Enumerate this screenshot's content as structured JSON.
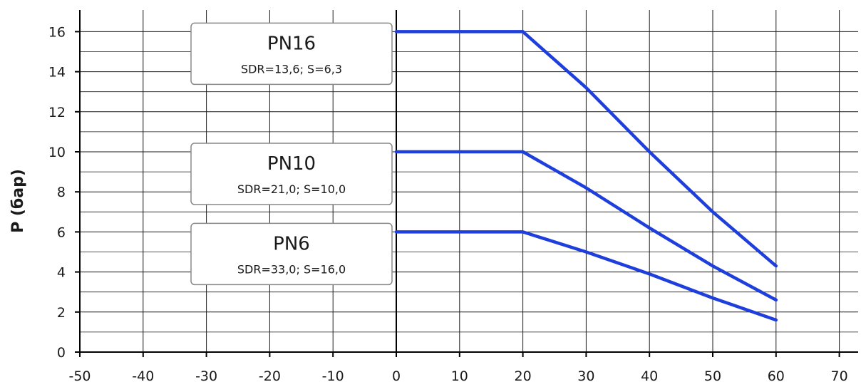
{
  "chart_data": {
    "type": "line",
    "title": "",
    "xlabel": "",
    "ylabel": "P (бар)",
    "xlim": [
      -50,
      75
    ],
    "ylim": [
      0,
      17
    ],
    "x_ticks": [
      -50,
      -40,
      -30,
      -20,
      -10,
      0,
      10,
      20,
      30,
      40,
      50,
      60,
      70
    ],
    "y_ticks": [
      0,
      2,
      4,
      6,
      8,
      10,
      12,
      14,
      16
    ],
    "grid": true,
    "line_color": "#1f3fdc",
    "series": [
      {
        "name": "PN16",
        "subtitle": "SDR=13,6; S=6,3",
        "points": [
          [
            0,
            16
          ],
          [
            20,
            16
          ],
          [
            30,
            13.2
          ],
          [
            40,
            10
          ],
          [
            50,
            7
          ],
          [
            60,
            4.3
          ]
        ]
      },
      {
        "name": "PN10",
        "subtitle": "SDR=21,0; S=10,0",
        "points": [
          [
            0,
            10
          ],
          [
            20,
            10
          ],
          [
            30,
            8.2
          ],
          [
            40,
            6.2
          ],
          [
            50,
            4.3
          ],
          [
            60,
            2.6
          ]
        ]
      },
      {
        "name": "PN6",
        "subtitle": "SDR=33,0; S=16,0",
        "points": [
          [
            0,
            6
          ],
          [
            20,
            6
          ],
          [
            30,
            5
          ],
          [
            40,
            3.9
          ],
          [
            50,
            2.7
          ],
          [
            60,
            1.6
          ]
        ]
      }
    ]
  }
}
